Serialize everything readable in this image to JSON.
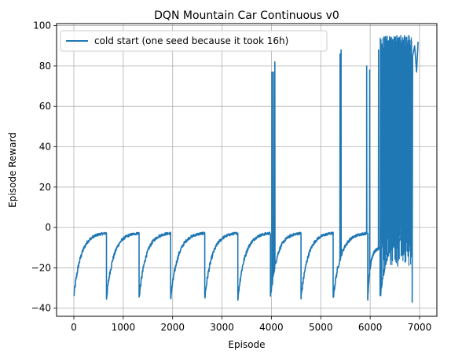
{
  "chart_data": {
    "type": "line",
    "title": "DQN Mountain Car Continuous v0",
    "xlabel": "Episode",
    "ylabel": "Episode Reward",
    "xlim": [
      -350,
      7350
    ],
    "ylim": [
      -44,
      101
    ],
    "xticks": [
      0,
      1000,
      2000,
      3000,
      4000,
      5000,
      6000,
      7000
    ],
    "yticks": [
      -40,
      -20,
      0,
      20,
      40,
      60,
      80,
      100
    ],
    "grid": true,
    "legend_position": "top-left",
    "colors": {
      "series": "#1f77b4",
      "grid": "#b0b0b0"
    },
    "series": [
      {
        "name": "cold start (one seed because it took 16h)",
        "cycles": [
          {
            "start": 0,
            "end": 660,
            "min": -34,
            "plateau": -2.5
          },
          {
            "start": 660,
            "end": 1320,
            "min": -35,
            "plateau": -2.5
          },
          {
            "start": 1320,
            "end": 1960,
            "min": -35,
            "plateau": -2.5
          },
          {
            "start": 1960,
            "end": 2650,
            "min": -35,
            "plateau": -2.5
          },
          {
            "start": 2650,
            "end": 3320,
            "min": -35,
            "plateau": -2.5
          },
          {
            "start": 3320,
            "end": 3980,
            "min": -35,
            "plateau": -2.5
          },
          {
            "start": 3980,
            "end": 4600,
            "min": -35,
            "plateau": -2.5
          },
          {
            "start": 4600,
            "end": 5250,
            "min": -35,
            "plateau": -2.5
          },
          {
            "start": 5250,
            "end": 5950,
            "min": -35,
            "plateau": -2.5
          },
          {
            "start": 5950,
            "end": 6200,
            "min": -35,
            "plateau": -10
          },
          {
            "start": 6200,
            "end": 6850,
            "min": -35,
            "plateau": -4
          }
        ],
        "spikes": [
          {
            "x": 4010,
            "y": 77
          },
          {
            "x": 4040,
            "y": 77
          },
          {
            "x": 4070,
            "y": 82
          },
          {
            "x": 5390,
            "y": 86
          },
          {
            "x": 5410,
            "y": 88
          },
          {
            "x": 5930,
            "y": 80
          },
          {
            "x": 5990,
            "y": 78
          },
          {
            "x": 6170,
            "y": 88
          },
          {
            "x": 6220,
            "y": 80
          },
          {
            "x": 6260,
            "y": 89
          },
          {
            "x": 6300,
            "y": 91
          },
          {
            "x": 6340,
            "y": 93
          },
          {
            "x": 6380,
            "y": 92
          },
          {
            "x": 6420,
            "y": 94
          },
          {
            "x": 6460,
            "y": 93
          },
          {
            "x": 6500,
            "y": 94
          },
          {
            "x": 6540,
            "y": 95
          },
          {
            "x": 6580,
            "y": 94
          },
          {
            "x": 6620,
            "y": 95
          },
          {
            "x": 6660,
            "y": 94
          },
          {
            "x": 6700,
            "y": 95
          },
          {
            "x": 6740,
            "y": 94
          },
          {
            "x": 6780,
            "y": 95
          }
        ],
        "final_segment": [
          {
            "x": 6850,
            "y": -37
          },
          {
            "x": 6860,
            "y": 85
          },
          {
            "x": 6900,
            "y": 90
          },
          {
            "x": 6940,
            "y": 77
          },
          {
            "x": 6970,
            "y": 92
          }
        ]
      }
    ]
  }
}
